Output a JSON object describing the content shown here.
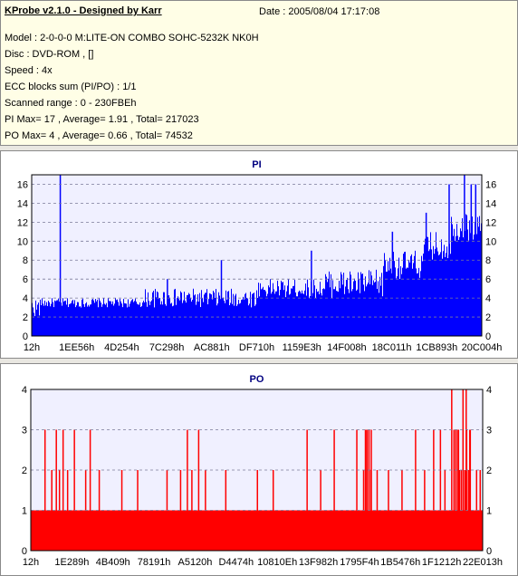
{
  "app_title": "KProbe v2.1.0 - Designed by Karr",
  "date_text": "Date : 2005/08/04 17:17:08",
  "info_lines": [
    "Model : 2-0-0-0 M:LITE-ON COMBO SOHC-5232K NK0H",
    "Disc : DVD-ROM ,  []",
    "Speed : 4x",
    "ECC blocks sum (PI/PO) : 1/1",
    "Scanned range : 0 - 230FBEh",
    "PI Max= 17 , Average= 1.91 , Total= 217023",
    "PO Max= 4 , Average= 0.66 , Total= 74532"
  ],
  "colors": {
    "panel_bg": "#e9e7e1",
    "info_bg": "#fffee6",
    "plot_bg": "#f0f0ff",
    "pi_bars": "#0000ff",
    "po_bars": "#ff0000",
    "title": "#000080"
  },
  "chart_data": [
    {
      "type": "bar",
      "title": "PI",
      "ylim": [
        0,
        17
      ],
      "y_ticks": [
        "0",
        "2",
        "4",
        "6",
        "8",
        "10",
        "12",
        "14",
        "16"
      ],
      "x_ticks": [
        "12h",
        "1EE56h",
        "4D254h",
        "7C298h",
        "AC881h",
        "DF710h",
        "1159E3h",
        "14F008h",
        "18C011h",
        "1CB893h",
        "20C004h"
      ],
      "grid": true,
      "x_range": [
        0,
        2297790
      ],
      "profile_segments": [
        {
          "start": 0.0,
          "end": 0.02,
          "low": 2,
          "high": 4
        },
        {
          "start": 0.02,
          "end": 0.25,
          "low": 3,
          "high": 4
        },
        {
          "start": 0.25,
          "end": 0.5,
          "low": 3,
          "high": 5
        },
        {
          "start": 0.5,
          "end": 0.65,
          "low": 4,
          "high": 6
        },
        {
          "start": 0.65,
          "end": 0.78,
          "low": 4,
          "high": 7
        },
        {
          "start": 0.78,
          "end": 0.87,
          "low": 6,
          "high": 9
        },
        {
          "start": 0.87,
          "end": 0.93,
          "low": 8,
          "high": 11
        },
        {
          "start": 0.93,
          "end": 1.0,
          "low": 10,
          "high": 13
        }
      ],
      "spikes": [
        {
          "pos": 0.062,
          "value": 17
        },
        {
          "pos": 0.3,
          "value": 6
        },
        {
          "pos": 0.42,
          "value": 8
        },
        {
          "pos": 0.62,
          "value": 9
        },
        {
          "pos": 0.8,
          "value": 11
        },
        {
          "pos": 0.875,
          "value": 13
        },
        {
          "pos": 0.926,
          "value": 16
        },
        {
          "pos": 0.96,
          "value": 17
        },
        {
          "pos": 0.975,
          "value": 16
        },
        {
          "pos": 0.985,
          "value": 16
        }
      ]
    },
    {
      "type": "bar",
      "title": "PO",
      "ylim": [
        0,
        4
      ],
      "y_ticks": [
        "0",
        "1",
        "2",
        "3",
        "4"
      ],
      "x_ticks": [
        "12h",
        "1E289h",
        "4B409h",
        "78191h",
        "A5120h",
        "D4474h",
        "10810Eh",
        "13F982h",
        "1795F4h",
        "1B5476h",
        "1F1212h",
        "22E013h"
      ],
      "grid": true,
      "x_range": [
        0,
        2297790
      ],
      "baseline": 1,
      "spikes": [
        {
          "pos": 0.03,
          "value": 3
        },
        {
          "pos": 0.045,
          "value": 2
        },
        {
          "pos": 0.055,
          "value": 3
        },
        {
          "pos": 0.062,
          "value": 2
        },
        {
          "pos": 0.07,
          "value": 3
        },
        {
          "pos": 0.08,
          "value": 2
        },
        {
          "pos": 0.095,
          "value": 3
        },
        {
          "pos": 0.12,
          "value": 2
        },
        {
          "pos": 0.13,
          "value": 3
        },
        {
          "pos": 0.15,
          "value": 2
        },
        {
          "pos": 0.2,
          "value": 2
        },
        {
          "pos": 0.235,
          "value": 2
        },
        {
          "pos": 0.3,
          "value": 2
        },
        {
          "pos": 0.33,
          "value": 2
        },
        {
          "pos": 0.345,
          "value": 3
        },
        {
          "pos": 0.355,
          "value": 2
        },
        {
          "pos": 0.37,
          "value": 3
        },
        {
          "pos": 0.385,
          "value": 2
        },
        {
          "pos": 0.43,
          "value": 2
        },
        {
          "pos": 0.5,
          "value": 2
        },
        {
          "pos": 0.535,
          "value": 2
        },
        {
          "pos": 0.61,
          "value": 3
        },
        {
          "pos": 0.64,
          "value": 2
        },
        {
          "pos": 0.67,
          "value": 3
        },
        {
          "pos": 0.72,
          "value": 3
        },
        {
          "pos": 0.74,
          "value": 3
        },
        {
          "pos": 0.752,
          "value": 3
        },
        {
          "pos": 0.765,
          "value": 2
        },
        {
          "pos": 0.79,
          "value": 2
        },
        {
          "pos": 0.82,
          "value": 2
        },
        {
          "pos": 0.85,
          "value": 3
        },
        {
          "pos": 0.87,
          "value": 2
        },
        {
          "pos": 0.89,
          "value": 3
        },
        {
          "pos": 0.905,
          "value": 3
        },
        {
          "pos": 0.915,
          "value": 2
        },
        {
          "pos": 0.93,
          "value": 4
        },
        {
          "pos": 0.945,
          "value": 3
        },
        {
          "pos": 0.955,
          "value": 4
        },
        {
          "pos": 0.962,
          "value": 4
        },
        {
          "pos": 0.97,
          "value": 3
        },
        {
          "pos": 0.985,
          "value": 2
        },
        {
          "pos": 0.993,
          "value": 2
        }
      ],
      "blocks": [
        {
          "start": 0.735,
          "end": 0.755,
          "value": 3
        },
        {
          "start": 0.935,
          "end": 0.975,
          "value": 3
        }
      ]
    }
  ]
}
